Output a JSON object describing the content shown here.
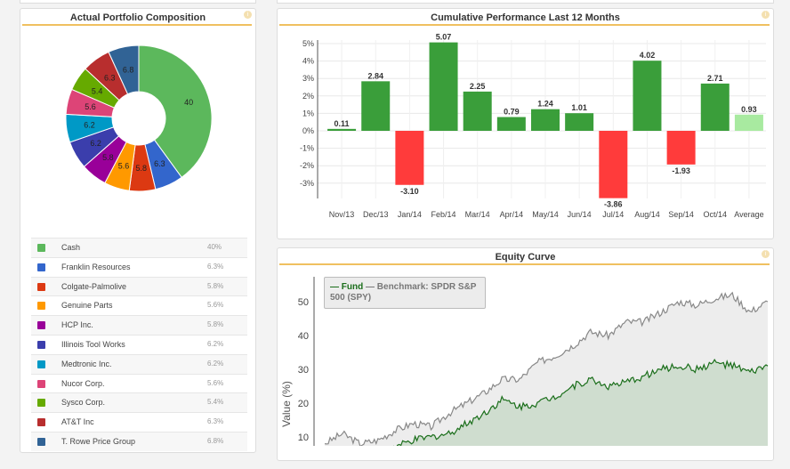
{
  "composition": {
    "title": "Actual Portfolio Composition",
    "chart_data": {
      "type": "pie",
      "donut": true,
      "labels": [
        "Cash",
        "Franklin Resources",
        "Colgate-Palmolive",
        "Genuine Parts",
        "HCP Inc.",
        "Illinois Tool Works",
        "Medtronic Inc.",
        "Nucor Corp.",
        "Sysco Corp.",
        "AT&T Inc",
        "T. Rowe Price Group"
      ],
      "values": [
        40,
        6.3,
        5.8,
        5.6,
        5.8,
        6.2,
        6.2,
        5.6,
        5.4,
        6.3,
        6.8
      ],
      "slice_labels": [
        "40",
        "6.3",
        "5.8",
        "5.6",
        "5.8",
        "6.2",
        "6.2",
        "5.6",
        "5.4",
        "6.3",
        "6.8"
      ],
      "colors": [
        "#5cb85c",
        "#3366cc",
        "#dc3912",
        "#ff9900",
        "#990099",
        "#3b3eac",
        "#0099c6",
        "#dd4477",
        "#66aa00",
        "#b82e2e",
        "#316395"
      ]
    },
    "legend": [
      {
        "name": "Cash",
        "pct": "40%"
      },
      {
        "name": "Franklin Resources",
        "pct": "6.3%"
      },
      {
        "name": "Colgate-Palmolive",
        "pct": "5.8%"
      },
      {
        "name": "Genuine Parts",
        "pct": "5.6%"
      },
      {
        "name": "HCP Inc.",
        "pct": "5.8%"
      },
      {
        "name": "Illinois Tool Works",
        "pct": "6.2%"
      },
      {
        "name": "Medtronic Inc.",
        "pct": "6.2%"
      },
      {
        "name": "Nucor Corp.",
        "pct": "5.6%"
      },
      {
        "name": "Sysco Corp.",
        "pct": "5.4%"
      },
      {
        "name": "AT&T Inc",
        "pct": "6.3%"
      },
      {
        "name": "T. Rowe Price Group",
        "pct": "6.8%"
      }
    ]
  },
  "performance": {
    "title": "Cumulative Performance Last 12 Months",
    "chart_data": {
      "type": "bar",
      "categories": [
        "Nov/13",
        "Dec/13",
        "Jan/14",
        "Feb/14",
        "Mar/14",
        "Apr/14",
        "May/14",
        "Jun/14",
        "Jul/14",
        "Aug/14",
        "Sep/14",
        "Oct/14",
        "Average"
      ],
      "values": [
        0.11,
        2.84,
        -3.1,
        5.07,
        2.25,
        0.79,
        1.24,
        1.01,
        -3.86,
        4.02,
        -1.93,
        2.71,
        0.93
      ],
      "data_labels": [
        "0.11",
        "2.84",
        "-3.10",
        "5.07",
        "2.25",
        "0.79",
        "1.24",
        "1.01",
        "-3.86",
        "4.02",
        "-1.93",
        "2.71",
        "0.93"
      ],
      "yticks": [
        "5%",
        "4%",
        "3%",
        "2%",
        "1%",
        "0%",
        "-1%",
        "-2%",
        "-3%"
      ],
      "ytick_values": [
        5,
        4,
        3,
        2,
        1,
        0,
        -1,
        -2,
        -3
      ],
      "ylim": [
        -4,
        5.3
      ],
      "grid": true,
      "colors": {
        "positive": "#3a9e3a",
        "negative": "#ff3b3b",
        "average": "#a8eaa0"
      }
    }
  },
  "equity": {
    "title": "Equity Curve",
    "chart_data": {
      "type": "area",
      "ylabel": "Value (%)",
      "yticks": [
        "50",
        "40",
        "30",
        "20",
        "10"
      ],
      "ytick_values": [
        50,
        40,
        30,
        20,
        10
      ],
      "legend": {
        "fund": "Fund",
        "benchmark": "Benchmark: SPDR S&P 500 (SPY)"
      },
      "series": [
        {
          "name": "Benchmark: SPDR S&P 500 (SPY)",
          "color": "#888888",
          "fill": "#ececec",
          "values": [
            8,
            11,
            8,
            9,
            12,
            14,
            13,
            17,
            20,
            23,
            27,
            27,
            32,
            34,
            37,
            41,
            40,
            44,
            44,
            47,
            50,
            49,
            51,
            52,
            47,
            50
          ]
        },
        {
          "name": "Fund",
          "color": "#1a6e1a",
          "fill": "#cddccd",
          "values": [
            3,
            4,
            4,
            5,
            7,
            9,
            10,
            11,
            14,
            17,
            21,
            19,
            20,
            22,
            25,
            27,
            25,
            26,
            28,
            30,
            31,
            30,
            32,
            31,
            29,
            31
          ]
        }
      ]
    }
  }
}
